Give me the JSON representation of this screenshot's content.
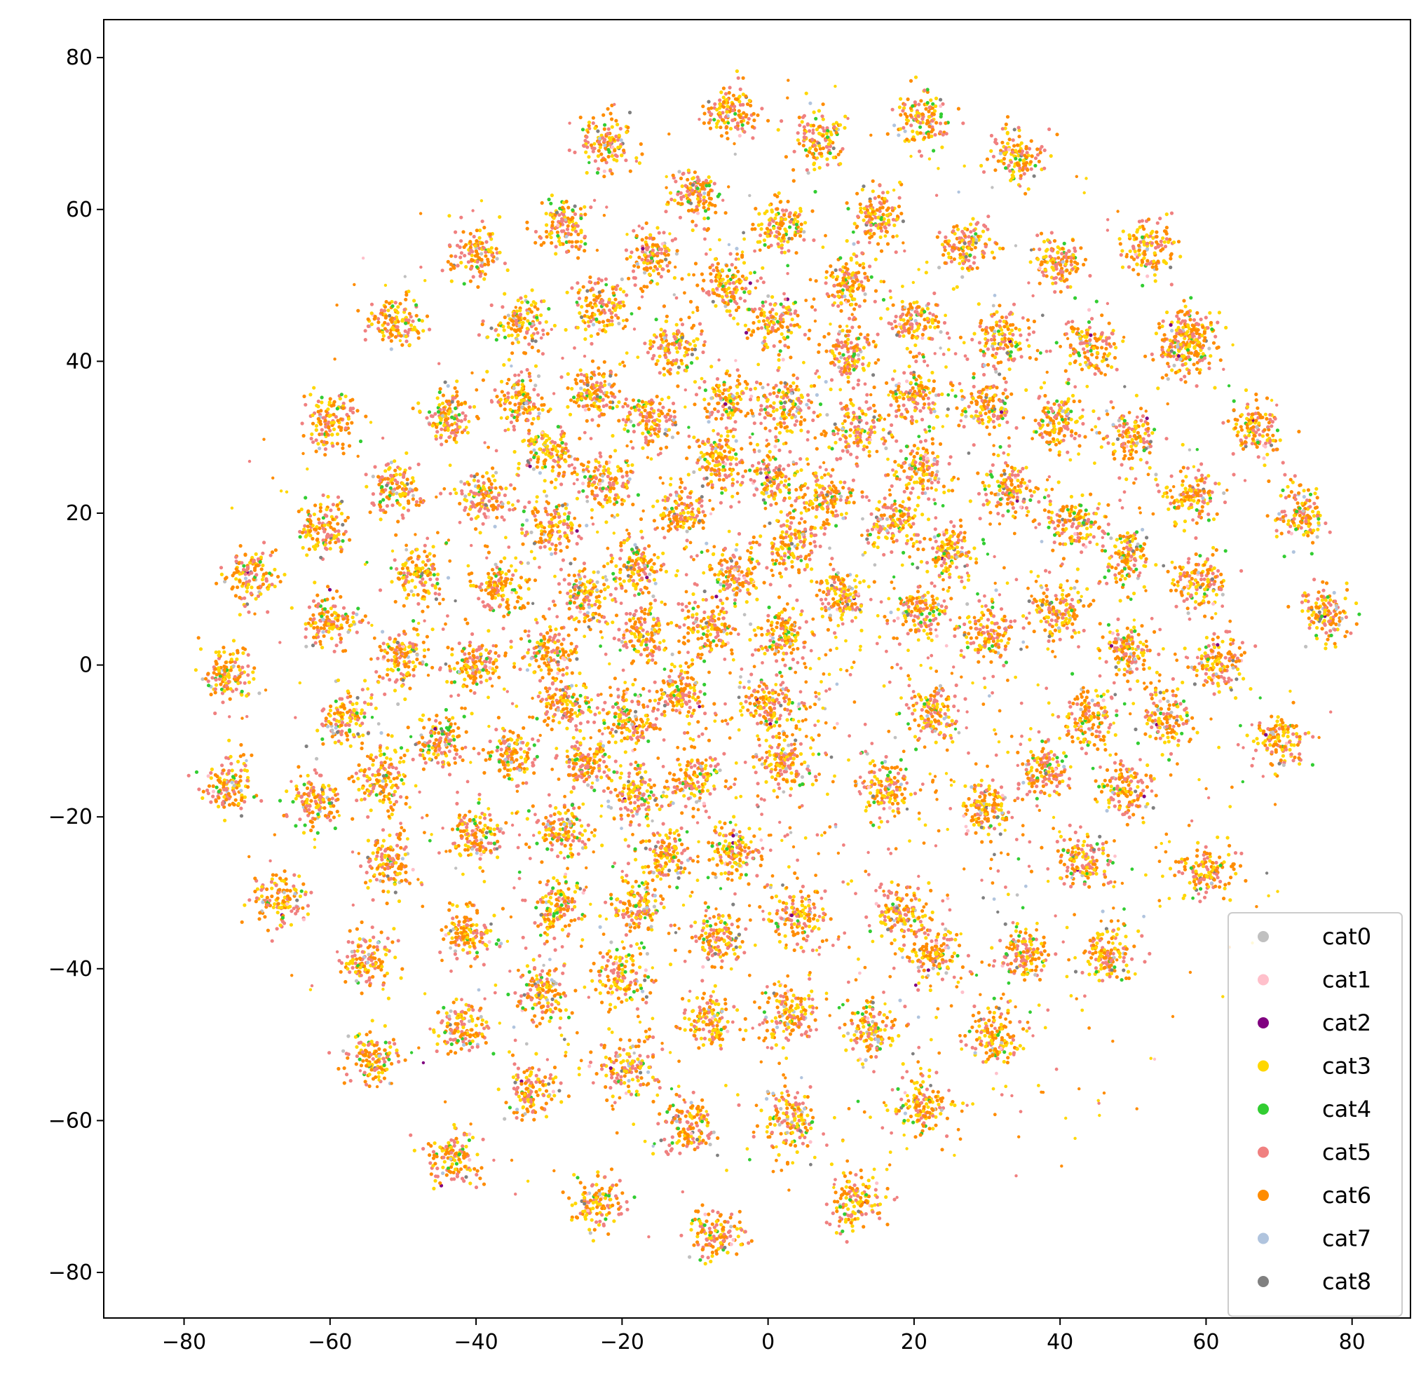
{
  "chart_data": {
    "type": "scatter",
    "title": "",
    "xlabel": "",
    "ylabel": "",
    "xlim": [
      -91,
      88
    ],
    "ylim": [
      -86,
      85
    ],
    "xticks": [
      -80,
      -60,
      -40,
      -20,
      0,
      20,
      40,
      60,
      80
    ],
    "yticks": [
      -80,
      -60,
      -40,
      -20,
      0,
      20,
      40,
      60,
      80
    ],
    "xtick_labels": [
      "−80",
      "−60",
      "−40",
      "−20",
      "0",
      "20",
      "40",
      "60",
      "80"
    ],
    "ytick_labels": [
      "−80",
      "−60",
      "−40",
      "−20",
      "0",
      "20",
      "40",
      "60",
      "80"
    ],
    "grid": false,
    "legend_position": "lower-right",
    "series": [
      {
        "name": "cat0",
        "color": "#c0c0c0"
      },
      {
        "name": "cat1",
        "color": "#ffc0cb"
      },
      {
        "name": "cat2",
        "color": "#800080"
      },
      {
        "name": "cat3",
        "color": "#ffd700"
      },
      {
        "name": "cat4",
        "color": "#32cd32"
      },
      {
        "name": "cat5",
        "color": "#f08080"
      },
      {
        "name": "cat6",
        "color": "#ff8c00"
      },
      {
        "name": "cat7",
        "color": "#b0c4de"
      },
      {
        "name": "cat8",
        "color": "#808080"
      }
    ],
    "clusters": [
      {
        "x": -5,
        "y": 73
      },
      {
        "x": -22,
        "y": 69
      },
      {
        "x": 7,
        "y": 69
      },
      {
        "x": 21,
        "y": 72
      },
      {
        "x": 34,
        "y": 67
      },
      {
        "x": -10,
        "y": 62
      },
      {
        "x": -28,
        "y": 58
      },
      {
        "x": 2,
        "y": 58
      },
      {
        "x": 15,
        "y": 59
      },
      {
        "x": 27,
        "y": 55
      },
      {
        "x": 52,
        "y": 55
      },
      {
        "x": -40,
        "y": 54
      },
      {
        "x": -16,
        "y": 54
      },
      {
        "x": 40,
        "y": 53
      },
      {
        "x": -6,
        "y": 50
      },
      {
        "x": 11,
        "y": 50
      },
      {
        "x": -51,
        "y": 45
      },
      {
        "x": -34,
        "y": 45
      },
      {
        "x": -23,
        "y": 47
      },
      {
        "x": 1,
        "y": 45
      },
      {
        "x": 20,
        "y": 45
      },
      {
        "x": 58,
        "y": 44
      },
      {
        "x": -13,
        "y": 42
      },
      {
        "x": 32,
        "y": 43
      },
      {
        "x": 44,
        "y": 42
      },
      {
        "x": 11,
        "y": 41
      },
      {
        "x": 57,
        "y": 41
      },
      {
        "x": -5,
        "y": 35
      },
      {
        "x": -44,
        "y": 33
      },
      {
        "x": -34,
        "y": 35
      },
      {
        "x": -24,
        "y": 36
      },
      {
        "x": 3,
        "y": 34
      },
      {
        "x": 20,
        "y": 35
      },
      {
        "x": 30,
        "y": 34
      },
      {
        "x": -60,
        "y": 32
      },
      {
        "x": -16,
        "y": 32
      },
      {
        "x": 40,
        "y": 32
      },
      {
        "x": 50,
        "y": 30
      },
      {
        "x": 67,
        "y": 31
      },
      {
        "x": 12,
        "y": 31
      },
      {
        "x": -30,
        "y": 28
      },
      {
        "x": -7,
        "y": 27
      },
      {
        "x": 21,
        "y": 26
      },
      {
        "x": 1,
        "y": 25
      },
      {
        "x": -51,
        "y": 23
      },
      {
        "x": -39,
        "y": 22
      },
      {
        "x": -22,
        "y": 24
      },
      {
        "x": 8,
        "y": 22
      },
      {
        "x": 33,
        "y": 23
      },
      {
        "x": 58,
        "y": 22
      },
      {
        "x": -12,
        "y": 20
      },
      {
        "x": 73,
        "y": 20
      },
      {
        "x": 17,
        "y": 19
      },
      {
        "x": 42,
        "y": 19
      },
      {
        "x": -61,
        "y": 18
      },
      {
        "x": -30,
        "y": 18
      },
      {
        "x": 3,
        "y": 16
      },
      {
        "x": 25,
        "y": 15
      },
      {
        "x": 49,
        "y": 14
      },
      {
        "x": -18,
        "y": 13
      },
      {
        "x": -4,
        "y": 12
      },
      {
        "x": -71,
        "y": 12
      },
      {
        "x": -48,
        "y": 12
      },
      {
        "x": 59,
        "y": 11
      },
      {
        "x": -37,
        "y": 10
      },
      {
        "x": -25,
        "y": 9
      },
      {
        "x": 10,
        "y": 9
      },
      {
        "x": 40,
        "y": 7
      },
      {
        "x": 76,
        "y": 7
      },
      {
        "x": -60,
        "y": 6
      },
      {
        "x": 21,
        "y": 7
      },
      {
        "x": -8,
        "y": 5
      },
      {
        "x": 2,
        "y": 4
      },
      {
        "x": 30,
        "y": 4
      },
      {
        "x": -17,
        "y": 4
      },
      {
        "x": -30,
        "y": 2
      },
      {
        "x": -50,
        "y": 1
      },
      {
        "x": 49,
        "y": 2
      },
      {
        "x": 62,
        "y": 0
      },
      {
        "x": -40,
        "y": 0
      },
      {
        "x": -74,
        "y": -1
      },
      {
        "x": -12,
        "y": -4
      },
      {
        "x": -28,
        "y": -5
      },
      {
        "x": 0,
        "y": -5
      },
      {
        "x": 23,
        "y": -6
      },
      {
        "x": -19,
        "y": -7
      },
      {
        "x": -58,
        "y": -7
      },
      {
        "x": 44,
        "y": -7
      },
      {
        "x": 54,
        "y": -7
      },
      {
        "x": -45,
        "y": -10
      },
      {
        "x": 70,
        "y": -10
      },
      {
        "x": -35,
        "y": -12
      },
      {
        "x": -25,
        "y": -13
      },
      {
        "x": 2,
        "y": -13
      },
      {
        "x": 38,
        "y": -14
      },
      {
        "x": -74,
        "y": -16
      },
      {
        "x": -53,
        "y": -15
      },
      {
        "x": -10,
        "y": -15
      },
      {
        "x": 16,
        "y": -16
      },
      {
        "x": 49,
        "y": -16
      },
      {
        "x": -18,
        "y": -17
      },
      {
        "x": -62,
        "y": -18
      },
      {
        "x": 30,
        "y": -19
      },
      {
        "x": -40,
        "y": -22
      },
      {
        "x": -28,
        "y": -22
      },
      {
        "x": -5,
        "y": -25
      },
      {
        "x": -14,
        "y": -25
      },
      {
        "x": -52,
        "y": -26
      },
      {
        "x": 43,
        "y": -26
      },
      {
        "x": 60,
        "y": -27
      },
      {
        "x": -67,
        "y": -31
      },
      {
        "x": -29,
        "y": -32
      },
      {
        "x": -18,
        "y": -32
      },
      {
        "x": 4,
        "y": -33
      },
      {
        "x": 18,
        "y": -33
      },
      {
        "x": -41,
        "y": -35
      },
      {
        "x": -7,
        "y": -36
      },
      {
        "x": 35,
        "y": -38
      },
      {
        "x": 47,
        "y": -38
      },
      {
        "x": -55,
        "y": -39
      },
      {
        "x": 23,
        "y": -38
      },
      {
        "x": -20,
        "y": -41
      },
      {
        "x": -31,
        "y": -43
      },
      {
        "x": 3,
        "y": -46
      },
      {
        "x": 14,
        "y": -48
      },
      {
        "x": -42,
        "y": -48
      },
      {
        "x": -8,
        "y": -47
      },
      {
        "x": 31,
        "y": -49
      },
      {
        "x": -54,
        "y": -52
      },
      {
        "x": -19,
        "y": -53
      },
      {
        "x": -32,
        "y": -56
      },
      {
        "x": 21,
        "y": -58
      },
      {
        "x": 3,
        "y": -60
      },
      {
        "x": -11,
        "y": -61
      },
      {
        "x": -43,
        "y": -65
      },
      {
        "x": -23,
        "y": -71
      },
      {
        "x": 12,
        "y": -71
      },
      {
        "x": -7,
        "y": -75
      }
    ],
    "scatter_around_center": {
      "x": 5,
      "y": -5,
      "radius": 60
    }
  }
}
